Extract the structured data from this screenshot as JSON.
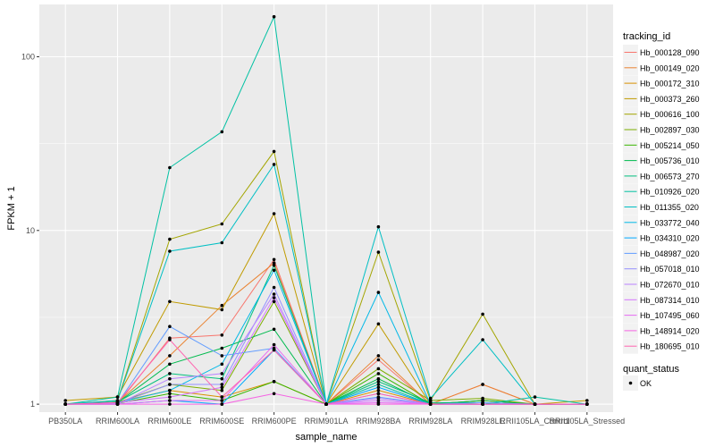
{
  "chart_data": {
    "type": "line",
    "title": "",
    "xlabel": "sample_name",
    "ylabel": "FPKM + 1",
    "y_scale": "log10",
    "ylim": [
      0.9,
      200
    ],
    "y_ticks": [
      {
        "value": 1,
        "label": "1"
      },
      {
        "value": 10,
        "label": "10"
      },
      {
        "value": 100,
        "label": "100"
      }
    ],
    "categories": [
      "PB350LA",
      "RRIM600LA",
      "RRIM600LE",
      "RRIM600SE",
      "RRIM600PE",
      "RRIM901LA",
      "RRIM928BA",
      "RRIM928LA",
      "RRIM928LE",
      "RRII105LA_Control",
      "RRII105LA_Stressed"
    ],
    "series": [
      {
        "name": "Hb_000128_090",
        "color": "#F8766D",
        "values": [
          1.0,
          1.0,
          2.4,
          2.5,
          6.8,
          1.0,
          1.8,
          1.0,
          1.3,
          1.0,
          1.0
        ]
      },
      {
        "name": "Hb_000149_020",
        "color": "#EA8331",
        "values": [
          1.0,
          1.02,
          1.9,
          3.7,
          6.5,
          1.0,
          1.9,
          1.0,
          1.3,
          1.0,
          1.0
        ]
      },
      {
        "name": "Hb_000172_310",
        "color": "#D89000",
        "values": [
          1.0,
          1.03,
          1.2,
          1.1,
          1.35,
          1.0,
          1.2,
          1.0,
          1.05,
          1.0,
          1.0
        ]
      },
      {
        "name": "Hb_000373_260",
        "color": "#C09B00",
        "values": [
          1.05,
          1.1,
          3.9,
          3.5,
          12.5,
          1.0,
          2.9,
          1.0,
          1.05,
          1.0,
          1.05
        ]
      },
      {
        "name": "Hb_000616_100",
        "color": "#A3A500",
        "values": [
          1.0,
          1.05,
          8.9,
          10.9,
          28.5,
          1.0,
          7.5,
          1.05,
          3.3,
          1.0,
          1.0
        ]
      },
      {
        "name": "Hb_002897_030",
        "color": "#7CAE00",
        "values": [
          1.0,
          1.02,
          1.3,
          1.2,
          3.9,
          1.0,
          1.6,
          1.05,
          1.08,
          1.0,
          1.0
        ]
      },
      {
        "name": "Hb_005214_050",
        "color": "#39B600",
        "values": [
          1.0,
          1.01,
          1.15,
          1.05,
          1.35,
          1.0,
          1.5,
          1.0,
          1.02,
          1.0,
          1.0
        ]
      },
      {
        "name": "Hb_005736_010",
        "color": "#00BB4E",
        "values": [
          1.0,
          1.02,
          1.7,
          2.1,
          2.7,
          1.0,
          1.4,
          1.0,
          1.05,
          1.0,
          1.0
        ]
      },
      {
        "name": "Hb_006573_270",
        "color": "#00BF7D",
        "values": [
          1.0,
          1.03,
          1.5,
          1.4,
          6.3,
          1.0,
          1.35,
          1.02,
          1.02,
          1.0,
          1.0
        ]
      },
      {
        "name": "Hb_010926_020",
        "color": "#00C1A3",
        "values": [
          1.0,
          1.1,
          23.0,
          37.0,
          170.0,
          1.0,
          1.3,
          1.0,
          1.0,
          1.1,
          1.0
        ]
      },
      {
        "name": "Hb_011355_020",
        "color": "#00BFC4",
        "values": [
          1.0,
          1.05,
          7.6,
          8.5,
          24.0,
          1.0,
          10.5,
          1.08,
          2.35,
          1.0,
          1.0
        ]
      },
      {
        "name": "Hb_033772_040",
        "color": "#00B8E7",
        "values": [
          1.0,
          1.02,
          1.2,
          1.7,
          5.9,
          1.0,
          4.4,
          1.0,
          1.0,
          1.0,
          1.0
        ]
      },
      {
        "name": "Hb_034310_020",
        "color": "#00A9FF",
        "values": [
          1.0,
          1.0,
          1.05,
          1.0,
          2.05,
          1.0,
          1.25,
          1.0,
          1.0,
          1.0,
          1.0
        ]
      },
      {
        "name": "Hb_048987_020",
        "color": "#619CFF",
        "values": [
          1.0,
          1.01,
          2.8,
          1.9,
          2.1,
          1.0,
          1.1,
          1.0,
          1.02,
          1.0,
          1.0
        ]
      },
      {
        "name": "Hb_057018_010",
        "color": "#9590FF",
        "values": [
          1.0,
          1.01,
          1.3,
          1.3,
          4.7,
          1.0,
          1.15,
          1.0,
          1.0,
          1.0,
          1.0
        ]
      },
      {
        "name": "Hb_072670_010",
        "color": "#B983FF",
        "values": [
          1.0,
          1.0,
          1.4,
          1.5,
          4.3,
          1.0,
          1.08,
          1.0,
          1.0,
          1.0,
          1.0
        ]
      },
      {
        "name": "Hb_087314_010",
        "color": "#D575FE",
        "values": [
          1.0,
          1.02,
          1.1,
          1.25,
          4.1,
          1.0,
          1.05,
          1.0,
          1.0,
          1.0,
          1.0
        ]
      },
      {
        "name": "Hb_107495_060",
        "color": "#E76BF3",
        "values": [
          1.0,
          1.0,
          1.05,
          1.05,
          2.2,
          1.0,
          1.02,
          1.0,
          1.0,
          1.0,
          1.0
        ]
      },
      {
        "name": "Hb_148914_020",
        "color": "#F564E3",
        "values": [
          1.0,
          1.0,
          1.0,
          1.0,
          1.15,
          1.0,
          1.0,
          1.0,
          1.0,
          1.0,
          1.0
        ]
      },
      {
        "name": "Hb_180695_010",
        "color": "#FF64B0",
        "values": [
          1.0,
          1.02,
          2.35,
          1.1,
          2.05,
          1.0,
          1.15,
          1.0,
          1.0,
          1.0,
          1.0
        ]
      }
    ],
    "extra_series_color": "#FF6C91",
    "legend": {
      "position": "right",
      "title": "tracking_id",
      "status_title": "quant_status",
      "status_items": [
        {
          "label": "OK"
        }
      ]
    },
    "grid": true,
    "panel_background": "#EBEBEB",
    "grid_color": "#FFFFFF"
  }
}
